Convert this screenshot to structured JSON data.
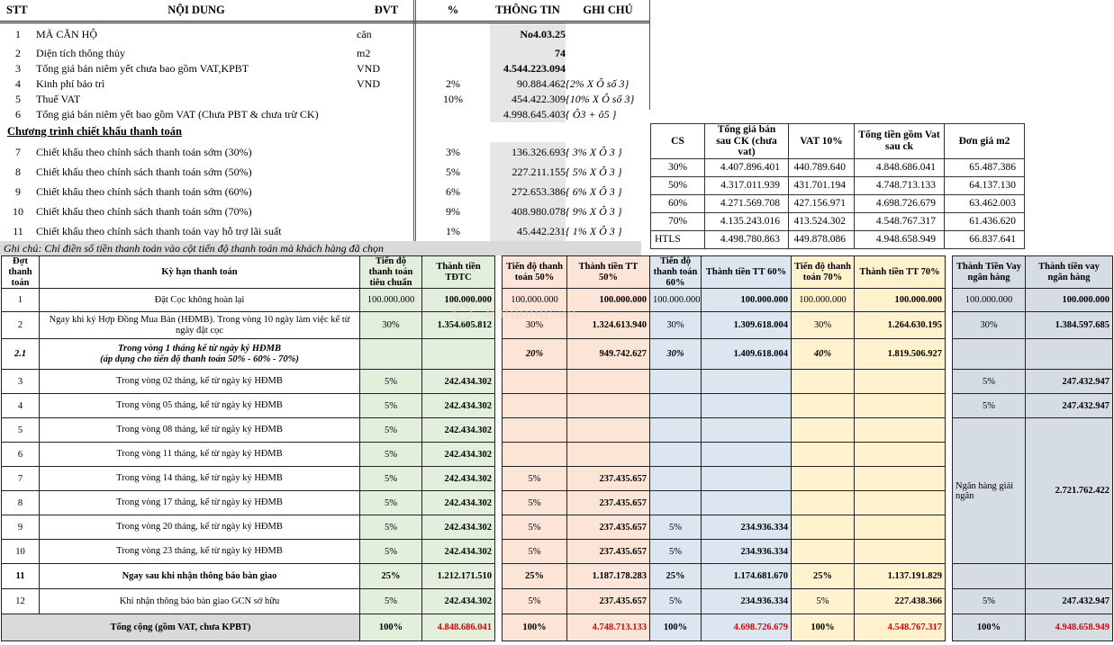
{
  "colors": {
    "accent_green": "#e2efda",
    "accent_peach": "#fce4d6",
    "accent_blue": "#dce6f1",
    "accent_yellow": "#fff2cc",
    "accent_gray": "#d6dce4",
    "band_gray": "#e7e6e6",
    "note_gray": "#d9d9d9",
    "total_red": "#e60000"
  },
  "watermark": {
    "text": "batdongsan"
  },
  "info_table": {
    "headers": [
      "STT",
      "NỘI DUNG",
      "ĐVT",
      "%",
      "THÔNG TIN",
      "GHI CHÚ"
    ],
    "rows": [
      {
        "stt": "1",
        "noi_dung": "MÃ CĂN HỘ",
        "dvt": "căn",
        "pct": "",
        "thong_tin": "No4.03.25",
        "ghi_chu": "",
        "b": true
      },
      {
        "stt": "2",
        "noi_dung": "Diện tích thông thủy",
        "dvt": "m2",
        "pct": "",
        "thong_tin": "74",
        "ghi_chu": "",
        "b": true
      },
      {
        "stt": "3",
        "noi_dung": "Tổng giá bán niêm yết chưa bao gồm VAT,KPBT",
        "dvt": "VND",
        "pct": "",
        "thong_tin": "4.544.223.094",
        "ghi_chu": "",
        "b": true
      },
      {
        "stt": "4",
        "noi_dung": "Kinh phí bảo trì",
        "dvt": "VND",
        "pct": "2%",
        "thong_tin": "90.884.462",
        "ghi_chu": "{2% X Ô số 3}",
        "b": false
      },
      {
        "stt": "5",
        "noi_dung": "Thuế VAT",
        "dvt": "",
        "pct": "10%",
        "thong_tin": "454.422.309",
        "ghi_chu": "{10% X Ô số 3}",
        "b": false
      },
      {
        "stt": "6",
        "noi_dung": "Tổng giá bán niêm yết bao gồm VAT (Chưa PBT & chưa trừ CK)",
        "dvt": "",
        "pct": "",
        "thong_tin": "4.998.645.403",
        "ghi_chu": "{ Ô3 + ô5 }",
        "b": false
      }
    ],
    "section_title": "Chương trình chiết khấu thanh toán",
    "discount_rows": [
      {
        "stt": "7",
        "noi_dung": "Chiết khấu theo chính sách thanh toán sớm (30%)",
        "dvt": "",
        "pct": "3%",
        "thong_tin": "136.326.693",
        "ghi_chu": "{ 3% X Ô 3 }",
        "b": false
      },
      {
        "stt": "8",
        "noi_dung": "Chiết khấu theo chính sách thanh toán sớm (50%)",
        "dvt": "",
        "pct": "5%",
        "thong_tin": "227.211.155",
        "ghi_chu": "{ 5% X Ô 3 }",
        "b": false
      },
      {
        "stt": "9",
        "noi_dung": "Chiết khấu theo chính sách thanh toán sớm (60%)",
        "dvt": "",
        "pct": "6%",
        "thong_tin": "272.653.386",
        "ghi_chu": "{ 6% X Ô 3 }",
        "b": false
      },
      {
        "stt": "10",
        "noi_dung": "Chiết khấu theo chính sách thanh toán sớm (70%)",
        "dvt": "",
        "pct": "9%",
        "thong_tin": "408.980.078",
        "ghi_chu": "{ 9% X Ô 3 }",
        "b": false
      },
      {
        "stt": "11",
        "noi_dung": "Chiết khấu theo chính sách thanh toán vay hỗ trợ lãi suất",
        "dvt": "",
        "pct": "1%",
        "thong_tin": "45.442.231",
        "ghi_chu": "{ 1% X Ô 3 }",
        "b": false
      }
    ],
    "note": "Ghi chú: Chỉ điền số tiền thanh toán vào cột tiến độ thanh toán mà khách hàng đã chọn"
  },
  "summary_table": {
    "headers": [
      "CS",
      "Tổng giá bán sau CK (chưa vat)",
      "VAT 10%",
      "Tổng tiền gồm Vat sau ck",
      "Đơn giá m2"
    ],
    "rows": [
      [
        "30%",
        "4.407.896.401",
        "440.789.640",
        "4.848.686.041",
        "65.487.386"
      ],
      [
        "50%",
        "4.317.011.939",
        "431.701.194",
        "4.748.713.133",
        "64.137.130"
      ],
      [
        "60%",
        "4.271.569.708",
        "427.156.971",
        "4.698.726.679",
        "63.462.003"
      ],
      [
        "70%",
        "4.135.243.016",
        "413.524.302",
        "4.548.767.317",
        "61.436.620"
      ],
      [
        "HTLS",
        "4.498.780.863",
        "449.878.086",
        "4.948.658.949",
        "66.837.641"
      ]
    ]
  },
  "payment_table": {
    "headers": [
      "Đợt thanh toán",
      "Kỳ hạn thanh toán",
      "Tiến độ thanh toán tiêu chuẩn",
      "Thành tiền TĐTC",
      "Tiến độ thanh toán 50%",
      "Thành tiền TT 50%",
      "Tiến độ thanh toán 60%",
      "Thành tiền TT 60%",
      "Tiến độ thanh toán 70%",
      "Thành tiền TT 70%",
      "Thành Tiền Vay ngân hàng",
      "Thành tiền vay ngân hàng"
    ],
    "rows": [
      {
        "no": "1",
        "label": "Đặt Cọc không hoàn lại",
        "style": "normal",
        "vay": "normal",
        "cells": [
          "100.000.000",
          "100.000.000",
          "100.000.000",
          "100.000.000",
          "100.000.000",
          "100.000.000",
          "100.000.000",
          "100.000.000",
          "100.000.000",
          "100.000.000"
        ]
      },
      {
        "no": "2",
        "label": "Ngay khi ký Hợp Đồng Mua Bán (HĐMB). Trong vòng 10 ngày làm việc kể từ ngày đặt cọc",
        "style": "normal",
        "vay": "normal",
        "cells": [
          "30%",
          "1.354.605.812",
          "30%",
          "1.324.613.940",
          "30%",
          "1.309.618.004",
          "30%",
          "1.264.630.195",
          "30%",
          "1.384.597.685"
        ]
      },
      {
        "no": "2.1",
        "label": "Trong vòng 1 tháng kể từ ngày ký HĐMB",
        "label2": "(áp dụng cho tiến độ thanh toán 50% - 60% - 70%)",
        "style": "bolditalic",
        "vay": "normal",
        "cells": [
          "",
          "",
          "20%",
          "949.742.627",
          "30%",
          "1.409.618.004",
          "40%",
          "1.819.506.927",
          "",
          ""
        ]
      },
      {
        "no": "3",
        "label": "Trong vòng 02 tháng, kể từ ngày ký HĐMB",
        "style": "normal",
        "vay": "normal",
        "cells": [
          "5%",
          "242.434.302",
          "",
          "",
          "",
          "",
          "",
          "",
          "5%",
          "247.432.947"
        ]
      },
      {
        "no": "4",
        "label": "Trong vòng 05 tháng, kể từ ngày ký HĐMB",
        "style": "normal",
        "vay": "normal",
        "cells": [
          "5%",
          "242.434.302",
          "",
          "",
          "",
          "",
          "",
          "",
          "5%",
          "247.432.947"
        ]
      },
      {
        "no": "5",
        "label": "Trong vòng 08 tháng, kể từ ngày ký HĐMB",
        "style": "normal",
        "vay": "merge",
        "vay_span": 6,
        "cells": [
          "5%",
          "242.434.302",
          "",
          "",
          "",
          "",
          "",
          "",
          "Ngân hàng giải ngân",
          "2.721.762.422"
        ]
      },
      {
        "no": "6",
        "label": "Trong vòng 11 tháng, kể từ ngày ký HĐMB",
        "style": "normal",
        "vay": "skip",
        "cells": [
          "5%",
          "242.434.302",
          "",
          "",
          "",
          "",
          "",
          "",
          null,
          null
        ]
      },
      {
        "no": "7",
        "label": "Trong vòng 14 tháng, kể từ ngày ký HĐMB",
        "style": "normal",
        "vay": "skip",
        "cells": [
          "5%",
          "242.434.302",
          "5%",
          "237.435.657",
          "",
          "",
          "",
          "",
          null,
          null
        ]
      },
      {
        "no": "8",
        "label": "Trong vòng 17 tháng, kể từ ngày ký HĐMB",
        "style": "normal",
        "vay": "skip",
        "cells": [
          "5%",
          "242.434.302",
          "5%",
          "237.435.657",
          "",
          "",
          "",
          "",
          null,
          null
        ]
      },
      {
        "no": "9",
        "label": "Trong vòng 20 tháng, kể từ ngày ký HĐMB",
        "style": "normal",
        "vay": "skip",
        "cells": [
          "5%",
          "242.434.302",
          "5%",
          "237.435.657",
          "5%",
          "234.936.334",
          "",
          "",
          null,
          null
        ]
      },
      {
        "no": "10",
        "label": "Trong vòng 23 tháng, kể từ ngày ký HĐMB",
        "style": "normal",
        "vay": "skip",
        "cells": [
          "5%",
          "242.434.302",
          "5%",
          "237.435.657",
          "5%",
          "234.936.334",
          "",
          "",
          null,
          null
        ]
      },
      {
        "no": "11",
        "label": "Ngay sau khi nhận thông báo bàn giao",
        "style": "bold",
        "vay": "normal",
        "cells": [
          "25%",
          "1.212.171.510",
          "25%",
          "1.187.178.283",
          "25%",
          "1.174.681.670",
          "25%",
          "1.137.191.829",
          "",
          ""
        ]
      },
      {
        "no": "12",
        "label": "Khi nhận thông báo bàn giao GCN sở hữu",
        "style": "normal",
        "vay": "normal",
        "cells": [
          "5%",
          "242.434.302",
          "5%",
          "237.435.657",
          "5%",
          "234.936.334",
          "5%",
          "227.438.366",
          "5%",
          "247.432.947"
        ]
      },
      {
        "no": "",
        "label": "Tổng cộng (gồm VAT, chưa KPBT)",
        "style": "total",
        "vay": "normal",
        "cells": [
          "100%",
          "4.848.686.041",
          "100%",
          "4.748.713.133",
          "100%",
          "4.698.726.679",
          "100%",
          "4.548.767.317",
          "100%",
          "4.948.658.949"
        ]
      }
    ]
  }
}
